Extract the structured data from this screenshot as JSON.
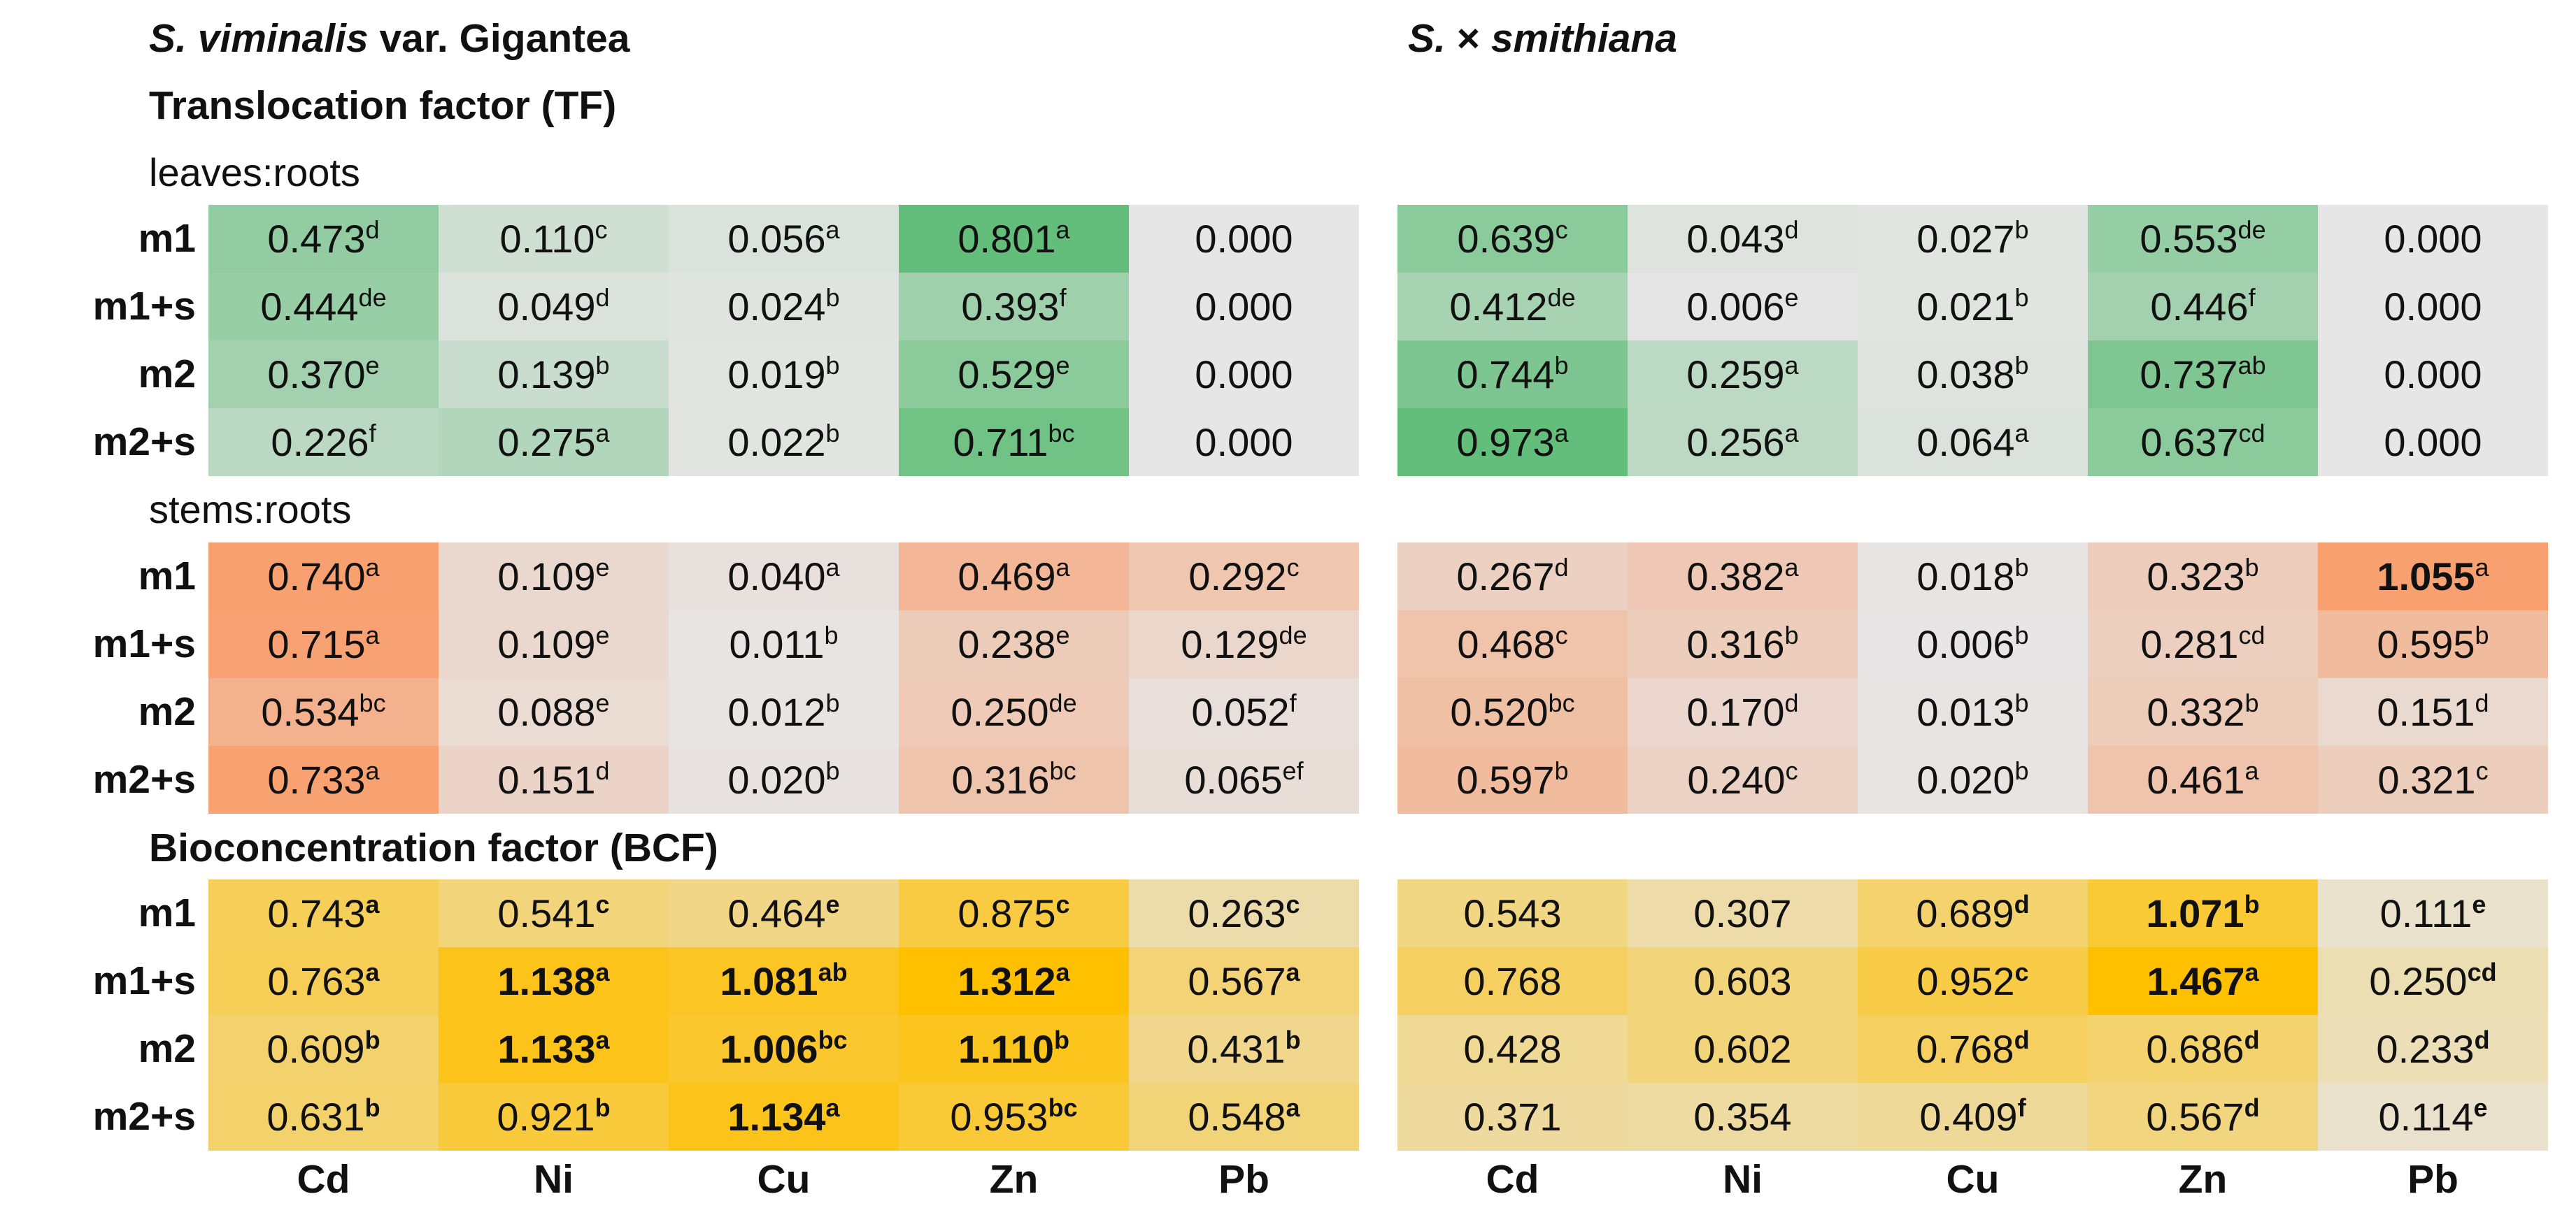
{
  "species": {
    "left_italic": "S. viminalis",
    "left_rest": "var. Gigantea",
    "right_prefix": "S. ",
    "right_times": "×",
    "right_italic": "smithiana"
  },
  "sections": {
    "tf_title": "Translocation factor (TF)",
    "leaves_roots": "leaves:roots",
    "stems_roots": "stems:roots",
    "bcf_title": "Bioconcentration factor (BCF)"
  },
  "colors": {
    "green": "#63be7b",
    "orange": "#f8a070",
    "yellow": "#ffc000",
    "neutral": "#e7e6e6"
  },
  "chart_data": {
    "type": "table",
    "rows": [
      "m1",
      "m1+s",
      "m2",
      "m2+s"
    ],
    "columns": [
      "Cd",
      "Ni",
      "Cu",
      "Zn",
      "Pb"
    ],
    "blocks": [
      {
        "factor": "Translocation factor (TF)",
        "ratio": "leaves:roots",
        "palette": "green",
        "species": "S. viminalis var. Gigantea",
        "cells": [
          [
            {
              "v": "0.473",
              "s": "d"
            },
            {
              "v": "0.110",
              "s": "c"
            },
            {
              "v": "0.056",
              "s": "a"
            },
            {
              "v": "0.801",
              "s": "a"
            },
            {
              "v": "0.000",
              "s": ""
            }
          ],
          [
            {
              "v": "0.444",
              "s": "de"
            },
            {
              "v": "0.049",
              "s": "d"
            },
            {
              "v": "0.024",
              "s": "b"
            },
            {
              "v": "0.393",
              "s": "f"
            },
            {
              "v": "0.000",
              "s": ""
            }
          ],
          [
            {
              "v": "0.370",
              "s": "e"
            },
            {
              "v": "0.139",
              "s": "b"
            },
            {
              "v": "0.019",
              "s": "b"
            },
            {
              "v": "0.529",
              "s": "e"
            },
            {
              "v": "0.000",
              "s": ""
            }
          ],
          [
            {
              "v": "0.226",
              "s": "f"
            },
            {
              "v": "0.275",
              "s": "a"
            },
            {
              "v": "0.022",
              "s": "b"
            },
            {
              "v": "0.711",
              "s": "bc"
            },
            {
              "v": "0.000",
              "s": ""
            }
          ]
        ]
      },
      {
        "factor": "Translocation factor (TF)",
        "ratio": "leaves:roots",
        "palette": "green",
        "species": "S. × smithiana",
        "cells": [
          [
            {
              "v": "0.639",
              "s": "c"
            },
            {
              "v": "0.043",
              "s": "d"
            },
            {
              "v": "0.027",
              "s": "b"
            },
            {
              "v": "0.553",
              "s": "de"
            },
            {
              "v": "0.000",
              "s": ""
            }
          ],
          [
            {
              "v": "0.412",
              "s": "de"
            },
            {
              "v": "0.006",
              "s": "e"
            },
            {
              "v": "0.021",
              "s": "b"
            },
            {
              "v": "0.446",
              "s": "f"
            },
            {
              "v": "0.000",
              "s": ""
            }
          ],
          [
            {
              "v": "0.744",
              "s": "b"
            },
            {
              "v": "0.259",
              "s": "a"
            },
            {
              "v": "0.038",
              "s": "b"
            },
            {
              "v": "0.737",
              "s": "ab"
            },
            {
              "v": "0.000",
              "s": ""
            }
          ],
          [
            {
              "v": "0.973",
              "s": "a"
            },
            {
              "v": "0.256",
              "s": "a"
            },
            {
              "v": "0.064",
              "s": "a"
            },
            {
              "v": "0.637",
              "s": "cd"
            },
            {
              "v": "0.000",
              "s": ""
            }
          ]
        ]
      },
      {
        "factor": "Translocation factor (TF)",
        "ratio": "stems:roots",
        "palette": "orange",
        "species": "S. viminalis var. Gigantea",
        "cells": [
          [
            {
              "v": "0.740",
              "s": "a"
            },
            {
              "v": "0.109",
              "s": "e"
            },
            {
              "v": "0.040",
              "s": "a"
            },
            {
              "v": "0.469",
              "s": "a"
            },
            {
              "v": "0.292",
              "s": "c"
            }
          ],
          [
            {
              "v": "0.715",
              "s": "a"
            },
            {
              "v": "0.109",
              "s": "e"
            },
            {
              "v": "0.011",
              "s": "b"
            },
            {
              "v": "0.238",
              "s": "e"
            },
            {
              "v": "0.129",
              "s": "de"
            }
          ],
          [
            {
              "v": "0.534",
              "s": "bc"
            },
            {
              "v": "0.088",
              "s": "e"
            },
            {
              "v": "0.012",
              "s": "b"
            },
            {
              "v": "0.250",
              "s": "de"
            },
            {
              "v": "0.052",
              "s": "f"
            }
          ],
          [
            {
              "v": "0.733",
              "s": "a"
            },
            {
              "v": "0.151",
              "s": "d"
            },
            {
              "v": "0.020",
              "s": "b"
            },
            {
              "v": "0.316",
              "s": "bc"
            },
            {
              "v": "0.065",
              "s": "ef"
            }
          ]
        ]
      },
      {
        "factor": "Translocation factor (TF)",
        "ratio": "stems:roots",
        "palette": "orange",
        "species": "S. × smithiana",
        "cells": [
          [
            {
              "v": "0.267",
              "s": "d"
            },
            {
              "v": "0.382",
              "s": "a"
            },
            {
              "v": "0.018",
              "s": "b"
            },
            {
              "v": "0.323",
              "s": "b"
            },
            {
              "v": "1.055",
              "s": "a",
              "bold": true
            }
          ],
          [
            {
              "v": "0.468",
              "s": "c"
            },
            {
              "v": "0.316",
              "s": "b"
            },
            {
              "v": "0.006",
              "s": "b"
            },
            {
              "v": "0.281",
              "s": "cd"
            },
            {
              "v": "0.595",
              "s": "b"
            }
          ],
          [
            {
              "v": "0.520",
              "s": "bc"
            },
            {
              "v": "0.170",
              "s": "d"
            },
            {
              "v": "0.013",
              "s": "b"
            },
            {
              "v": "0.332",
              "s": "b"
            },
            {
              "v": "0.151",
              "s": "d"
            }
          ],
          [
            {
              "v": "0.597",
              "s": "b"
            },
            {
              "v": "0.240",
              "s": "c"
            },
            {
              "v": "0.020",
              "s": "b"
            },
            {
              "v": "0.461",
              "s": "a"
            },
            {
              "v": "0.321",
              "s": "c"
            }
          ]
        ]
      },
      {
        "factor": "Bioconcentration factor (BCF)",
        "ratio": "",
        "palette": "yellow",
        "species": "S. viminalis var. Gigantea",
        "bold_superscripts": true,
        "cells": [
          [
            {
              "v": "0.743",
              "s": "a"
            },
            {
              "v": "0.541",
              "s": "c"
            },
            {
              "v": "0.464",
              "s": "e"
            },
            {
              "v": "0.875",
              "s": "c"
            },
            {
              "v": "0.263",
              "s": "c"
            }
          ],
          [
            {
              "v": "0.763",
              "s": "a"
            },
            {
              "v": "1.138",
              "s": "a",
              "bold": true
            },
            {
              "v": "1.081",
              "s": "ab",
              "bold": true
            },
            {
              "v": "1.312",
              "s": "a",
              "bold": true
            },
            {
              "v": "0.567",
              "s": "a"
            }
          ],
          [
            {
              "v": "0.609",
              "s": "b"
            },
            {
              "v": "1.133",
              "s": "a",
              "bold": true
            },
            {
              "v": "1.006",
              "s": "bc",
              "bold": true
            },
            {
              "v": "1.110",
              "s": "b",
              "bold": true
            },
            {
              "v": "0.431",
              "s": "b"
            }
          ],
          [
            {
              "v": "0.631",
              "s": "b"
            },
            {
              "v": "0.921",
              "s": "b"
            },
            {
              "v": "1.134",
              "s": "a",
              "bold": true
            },
            {
              "v": "0.953",
              "s": "bc"
            },
            {
              "v": "0.548",
              "s": "a"
            }
          ]
        ]
      },
      {
        "factor": "Bioconcentration factor (BCF)",
        "ratio": "",
        "palette": "yellow",
        "species": "S. × smithiana",
        "bold_superscripts": true,
        "cells": [
          [
            {
              "v": "0.543",
              "s": ""
            },
            {
              "v": "0.307",
              "s": ""
            },
            {
              "v": "0.689",
              "s": "d"
            },
            {
              "v": "1.071",
              "s": "b",
              "bold": true
            },
            {
              "v": "0.111",
              "s": "e"
            }
          ],
          [
            {
              "v": "0.768",
              "s": ""
            },
            {
              "v": "0.603",
              "s": ""
            },
            {
              "v": "0.952",
              "s": "c"
            },
            {
              "v": "1.467",
              "s": "a",
              "bold": true
            },
            {
              "v": "0.250",
              "s": "cd"
            }
          ],
          [
            {
              "v": "0.428",
              "s": ""
            },
            {
              "v": "0.602",
              "s": ""
            },
            {
              "v": "0.768",
              "s": "d"
            },
            {
              "v": "0.686",
              "s": "d"
            },
            {
              "v": "0.233",
              "s": "d"
            }
          ],
          [
            {
              "v": "0.371",
              "s": ""
            },
            {
              "v": "0.354",
              "s": ""
            },
            {
              "v": "0.409",
              "s": "f"
            },
            {
              "v": "0.567",
              "s": "d"
            },
            {
              "v": "0.114",
              "s": "e"
            }
          ]
        ]
      }
    ]
  }
}
